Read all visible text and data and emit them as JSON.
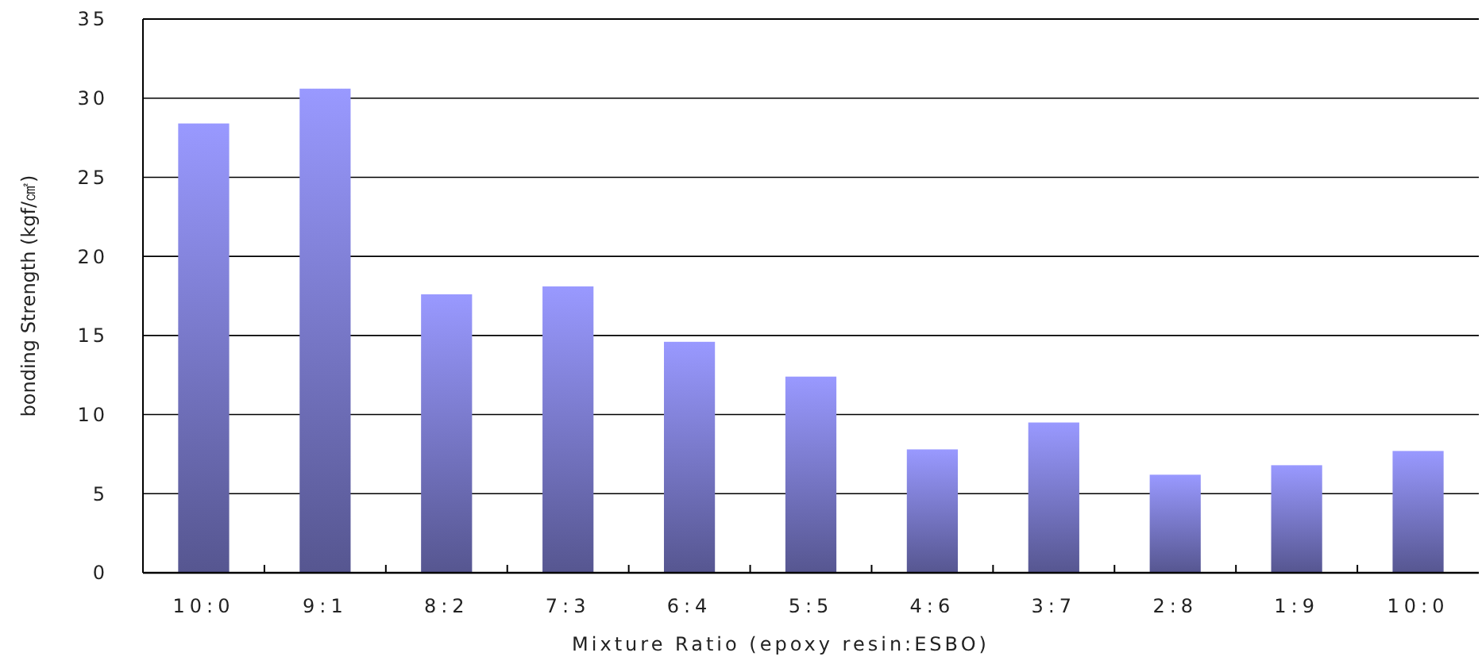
{
  "chart_data": {
    "type": "bar",
    "xlabel": "Mixture Ratio (epoxy resin:ESBO)",
    "ylabel": "bonding Strength (kgf/㎠)",
    "categories": [
      "10:0",
      "9:1",
      "8:2",
      "7:3",
      "6:4",
      "5:5",
      "4:6",
      "3:7",
      "2:8",
      "1:9",
      "10:0"
    ],
    "values": [
      28.4,
      30.6,
      17.6,
      18.1,
      14.6,
      12.4,
      7.8,
      9.5,
      6.2,
      6.8,
      7.7
    ],
    "color": "#9999ff",
    "ylim": [
      0,
      35
    ],
    "yticks": [
      0,
      5,
      10,
      15,
      20,
      25,
      30,
      35
    ],
    "grid": "y"
  }
}
